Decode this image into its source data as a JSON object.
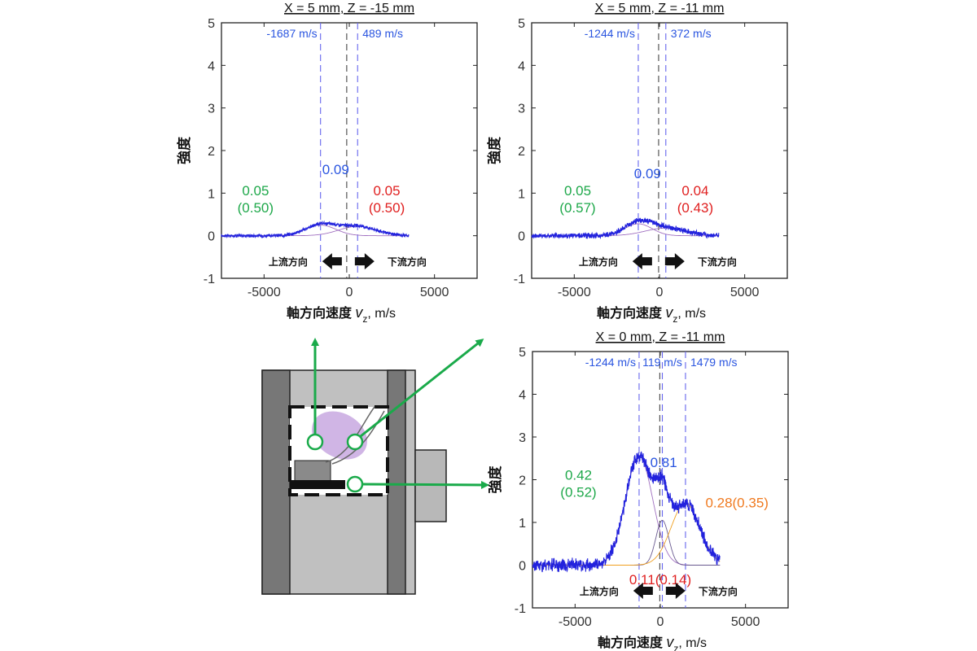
{
  "chart_data": [
    {
      "type": "line",
      "title": "X = 5 mm, Z = -15 mm",
      "xlabel": "軸方向速度",
      "xvar": "v",
      "xvar_sub": "z",
      "xunit": ", m/s",
      "ylabel": "強度",
      "xlim": [
        -7500,
        7500
      ],
      "ylim": [
        -1,
        5
      ],
      "xticks": [
        -5000,
        0,
        5000
      ],
      "yticks": [
        -1,
        0,
        1,
        2,
        3,
        4,
        5
      ],
      "data_x_range": [
        -7500,
        3500
      ],
      "noise_amp": 0.03,
      "peaks": [
        {
          "center": -1687,
          "height": 0.25,
          "sigma": 900,
          "color": "#a070c0"
        },
        {
          "center": 489,
          "height": 0.22,
          "sigma": 1100,
          "color": "#a070c0"
        }
      ],
      "vlines": [
        {
          "x": -1687,
          "color": "#6666ee",
          "dash": "8,5"
        },
        {
          "x": 489,
          "color": "#6666ee",
          "dash": "8,5"
        },
        {
          "x": -150,
          "color": "#444444",
          "dash": "8,5"
        }
      ],
      "vline_labels": [
        {
          "x": -1687,
          "text": "-1687 m/s",
          "anchor": "end"
        },
        {
          "x": 489,
          "text": "489 m/s",
          "anchor": "start"
        }
      ],
      "annotations": [
        {
          "x": -5500,
          "y": 0.95,
          "text": "0.05",
          "color": "#1ea84a"
        },
        {
          "x": -5500,
          "y": 0.55,
          "text": "(0.50)",
          "color": "#1ea84a"
        },
        {
          "x": -800,
          "y": 1.45,
          "text": "0.09",
          "color": "#2a55e0"
        },
        {
          "x": 2200,
          "y": 0.95,
          "text": "0.05",
          "color": "#e02020"
        },
        {
          "x": 2200,
          "y": 0.55,
          "text": "(0.50)",
          "color": "#e02020"
        }
      ],
      "upstream_label": "上流方向",
      "downstream_label": "下流方向"
    },
    {
      "type": "line",
      "title": "X = 5 mm, Z = -11 mm",
      "xlabel": "軸方向速度",
      "xvar": "v",
      "xvar_sub": "z",
      "xunit": ", m/s",
      "ylabel": "強度",
      "xlim": [
        -7500,
        7500
      ],
      "ylim": [
        -1,
        5
      ],
      "xticks": [
        -5000,
        0,
        5000
      ],
      "yticks": [
        -1,
        0,
        1,
        2,
        3,
        4,
        5
      ],
      "data_x_range": [
        -7500,
        3500
      ],
      "noise_amp": 0.05,
      "peaks": [
        {
          "center": -1244,
          "height": 0.28,
          "sigma": 800,
          "color": "#a070c0"
        },
        {
          "center": 372,
          "height": 0.18,
          "sigma": 1200,
          "color": "#a070c0"
        }
      ],
      "vlines": [
        {
          "x": -1244,
          "color": "#6666ee",
          "dash": "8,5"
        },
        {
          "x": 372,
          "color": "#6666ee",
          "dash": "8,5"
        },
        {
          "x": -50,
          "color": "#444444",
          "dash": "8,5"
        }
      ],
      "vline_labels": [
        {
          "x": -1244,
          "text": "-1244 m/s",
          "anchor": "end"
        },
        {
          "x": 372,
          "text": "372 m/s",
          "anchor": "start"
        }
      ],
      "annotations": [
        {
          "x": -4800,
          "y": 0.95,
          "text": "0.05",
          "color": "#1ea84a"
        },
        {
          "x": -4800,
          "y": 0.55,
          "text": "(0.57)",
          "color": "#1ea84a"
        },
        {
          "x": -700,
          "y": 1.35,
          "text": "0.09",
          "color": "#2a55e0"
        },
        {
          "x": 2100,
          "y": 0.95,
          "text": "0.04",
          "color": "#e02020"
        },
        {
          "x": 2100,
          "y": 0.55,
          "text": "(0.43)",
          "color": "#e02020"
        }
      ],
      "upstream_label": "上流方向",
      "downstream_label": "下流方向"
    },
    {
      "type": "line",
      "title": "X = 0 mm, Z = -11 mm",
      "xlabel": "軸方向速度",
      "xvar": "v",
      "xvar_sub": "z",
      "xunit": ", m/s",
      "ylabel": "強度",
      "xlim": [
        -7500,
        7500
      ],
      "ylim": [
        -1,
        5
      ],
      "xticks": [
        -5000,
        0,
        5000
      ],
      "yticks": [
        -1,
        0,
        1,
        2,
        3,
        4,
        5
      ],
      "data_x_range": [
        -7500,
        3500
      ],
      "noise_amp": 0.12,
      "peaks": [
        {
          "center": -1244,
          "height": 2.55,
          "sigma": 800,
          "color": "#a070c0"
        },
        {
          "center": 119,
          "height": 1.05,
          "sigma": 380,
          "color": "#6a5a90"
        },
        {
          "center": 1479,
          "height": 1.45,
          "sigma": 850,
          "color": "#f0a020"
        }
      ],
      "vlines": [
        {
          "x": -1244,
          "color": "#6666ee",
          "dash": "8,5"
        },
        {
          "x": 119,
          "color": "#6666ee",
          "dash": "8,5"
        },
        {
          "x": 1479,
          "color": "#6666ee",
          "dash": "8,5"
        },
        {
          "x": -30,
          "color": "#444444",
          "dash": "8,5"
        }
      ],
      "vline_labels": [
        {
          "x": -1244,
          "text": "-1244 m/s",
          "anchor": "end"
        },
        {
          "x": 119,
          "text": "119 m/s",
          "anchor": "middle"
        },
        {
          "x": 1479,
          "text": "1479 m/s",
          "anchor": "start"
        }
      ],
      "annotations": [
        {
          "x": -4800,
          "y": 2.0,
          "text": "0.42",
          "color": "#1ea84a"
        },
        {
          "x": -4800,
          "y": 1.6,
          "text": "(0.52)",
          "color": "#1ea84a"
        },
        {
          "x": 200,
          "y": 2.3,
          "text": "0.81",
          "color": "#2a55e0"
        },
        {
          "x": 4500,
          "y": 1.35,
          "text": "0.28(0.35)",
          "color": "#f07a20"
        },
        {
          "x": 0,
          "y": -0.45,
          "text": "0.11(0.14)",
          "color": "#e02020"
        }
      ],
      "upstream_label": "上流方向",
      "downstream_label": "下流方向"
    }
  ],
  "colors": {
    "spectrum": "#2222dd",
    "arrow": "#1aaa4a",
    "plasma": "#c8a8e0"
  }
}
